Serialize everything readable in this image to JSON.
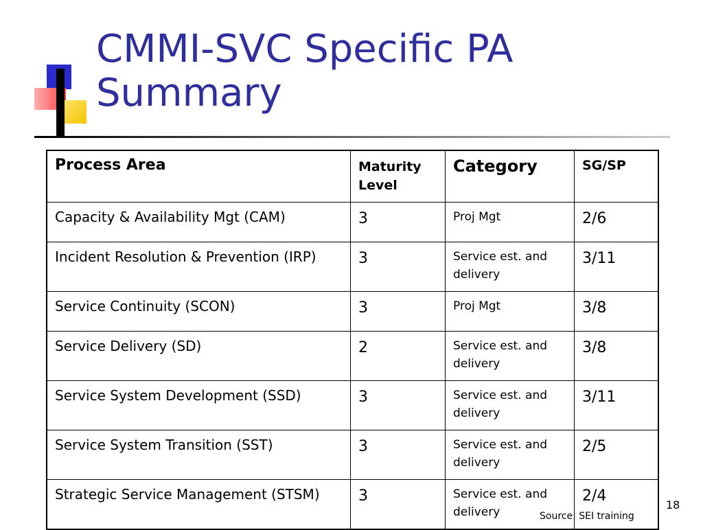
{
  "slide": {
    "title_line1": "CMMI-SVC Specific PA",
    "title_line2": "Summary",
    "page_number": "18",
    "source": "Source: SEI training"
  },
  "colors": {
    "title": "#2e2e9c",
    "blue_square": "#2b2bcc",
    "red_square": "#ff4040",
    "yellow_square": "#f2c500"
  },
  "table": {
    "headers": [
      "Process Area",
      "Maturity Level",
      "Category",
      "SG/SP"
    ],
    "rows": [
      {
        "process_area": "Capacity & Availability Mgt  (CAM)",
        "maturity_level": "3",
        "category": "Proj Mgt",
        "sg_sp": "2/6"
      },
      {
        "process_area": "Incident Resolution & Prevention (IRP)",
        "maturity_level": "3",
        "category": "Service est. and delivery",
        "sg_sp": "3/11"
      },
      {
        "process_area": "Service Continuity (SCON)",
        "maturity_level": "3",
        "category": "Proj Mgt",
        "sg_sp": "3/8"
      },
      {
        "process_area": "Service Delivery (SD)",
        "maturity_level": "2",
        "category": "Service est. and delivery",
        "sg_sp": "3/8"
      },
      {
        "process_area": "Service System Development (SSD)",
        "maturity_level": "3",
        "category": "Service est. and delivery",
        "sg_sp": "3/11"
      },
      {
        "process_area": "Service System Transition (SST)",
        "maturity_level": "3",
        "category": "Service est. and delivery",
        "sg_sp": "2/5"
      },
      {
        "process_area": "Strategic Service Management (STSM)",
        "maturity_level": "3",
        "category": "Service est. and delivery",
        "sg_sp": "2/4"
      }
    ]
  }
}
